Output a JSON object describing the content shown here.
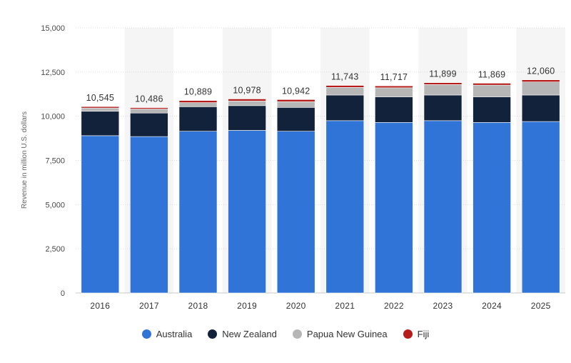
{
  "chart_data": {
    "type": "bar",
    "stacked": true,
    "categories": [
      "2016",
      "2017",
      "2018",
      "2019",
      "2020",
      "2021",
      "2022",
      "2023",
      "2024",
      "2025"
    ],
    "series": [
      {
        "name": "Australia",
        "color": "#2f74d6",
        "values": [
          8900,
          8850,
          9150,
          9200,
          9150,
          9750,
          9650,
          9750,
          9650,
          9700
        ]
      },
      {
        "name": "New Zealand",
        "color": "#12223a",
        "values": [
          1380,
          1330,
          1390,
          1400,
          1350,
          1450,
          1450,
          1450,
          1450,
          1500
        ]
      },
      {
        "name": "Papua New Guinea",
        "color": "#b6b6b6",
        "values": [
          185,
          230,
          230,
          260,
          320,
          430,
          510,
          590,
          660,
          740
        ]
      },
      {
        "name": "Fiji",
        "color": "#b51c1c",
        "values": [
          80,
          76,
          119,
          118,
          122,
          113,
          107,
          109,
          109,
          120
        ]
      }
    ],
    "totals": [
      "10,545",
      "10,486",
      "10,889",
      "10,978",
      "10,942",
      "11,743",
      "11,717",
      "11,899",
      "11,869",
      "12,060"
    ],
    "ylabel": "Revenue in million U.S. dollars",
    "ylim": [
      0,
      15000
    ],
    "yticks": [
      0,
      2500,
      5000,
      7500,
      10000,
      12500,
      15000
    ],
    "ytick_labels": [
      "0",
      "2,500",
      "5,000",
      "7,500",
      "10,000",
      "12,500",
      "15,000"
    ],
    "grid": true,
    "legend_position": "bottom"
  }
}
